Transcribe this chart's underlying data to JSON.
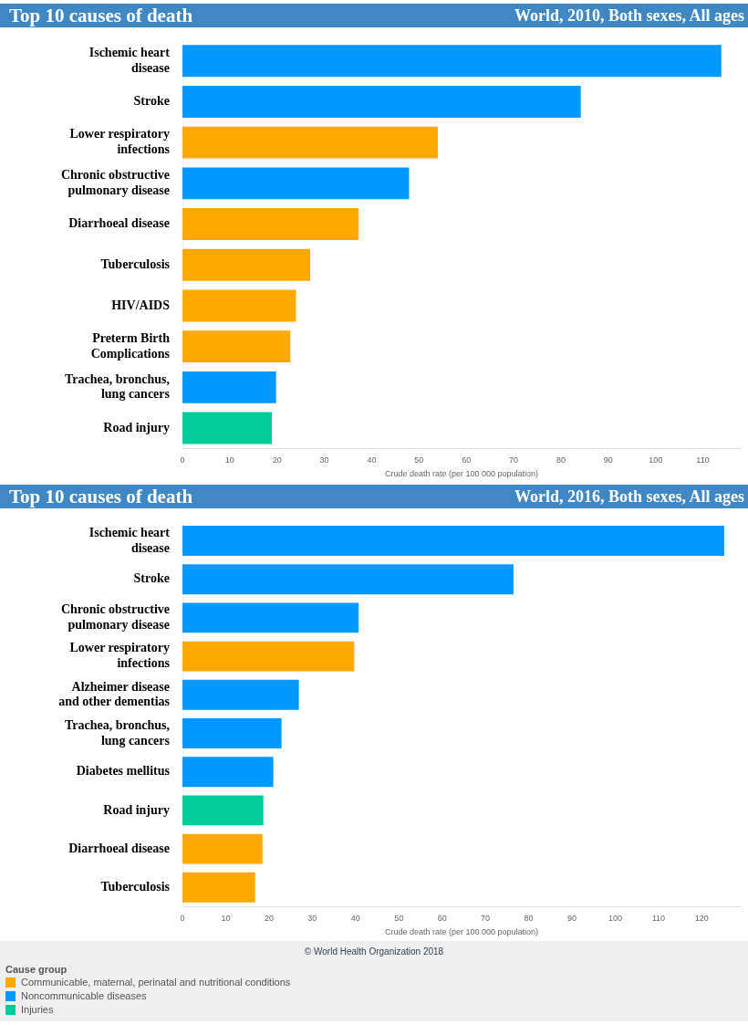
{
  "chart_data": [
    {
      "type": "bar",
      "orientation": "horizontal",
      "stacked": true,
      "title": "Top 10 causes of death",
      "subtitle": "World, 2010, Both sexes, All ages",
      "xlabel": "Crude death rate (per 100 000 population)",
      "categories": [
        "Ischemic heart disease",
        "Stroke",
        "Lower respiratory infections",
        "Chronic obstructive pulmonary disease",
        "Diarrhoeal disease",
        "Tuberculosis",
        "HIV/AIDS",
        "Preterm Birth Complications",
        "Trachea, bronchus, lung cancers",
        "Road injury"
      ],
      "series": [
        {
          "color": "#ffa800",
          "values": [
            null,
            null,
            54,
            null,
            37.2,
            27,
            24,
            22.8,
            null,
            null
          ]
        },
        {
          "color": "#0099ff",
          "values": [
            113.9,
            84.2,
            null,
            47.9,
            null,
            null,
            null,
            null,
            19.8,
            null
          ]
        },
        {
          "color": "#00cc99",
          "values": [
            null,
            null,
            null,
            null,
            null,
            null,
            null,
            null,
            null,
            18.9
          ]
        }
      ],
      "xlim": [
        0,
        118
      ],
      "xticks": [
        0,
        10,
        20,
        30,
        40,
        50,
        60,
        70,
        80,
        90,
        100,
        110
      ]
    },
    {
      "type": "bar",
      "orientation": "horizontal",
      "stacked": true,
      "title": "Top 10 causes of death",
      "subtitle": "World, 2016, Both sexes, All ages",
      "xlabel": "Crude death rate (per 100 000 population)",
      "legend": "bottom",
      "legend_title": "Cause group",
      "annotations": [
        "© World Health Organization 2018"
      ],
      "categories": [
        "Ischemic heart disease",
        "Stroke",
        "Chronic obstructive pulmonary disease",
        "Lower respiratory infections",
        "Alzheimer disease and other dementias",
        "Trachea, bronchus, lung cancers",
        "Diabetes mellitus",
        "Road injury",
        "Diarrhoeal disease",
        "Tuberculosis"
      ],
      "series": [
        {
          "name": "Communicable, maternal, perinatal and nutritional conditions",
          "color": "#ffa800",
          "values": [
            null,
            null,
            null,
            39.7,
            null,
            null,
            null,
            null,
            18.5,
            16.8
          ]
        },
        {
          "name": "Noncommunicable diseases",
          "color": "#0099ff",
          "values": [
            125.2,
            76.5,
            40.7,
            null,
            26.9,
            22.9,
            21,
            null,
            null,
            null
          ]
        },
        {
          "name": "Injuries",
          "color": "#00cc99",
          "values": [
            null,
            null,
            null,
            null,
            null,
            null,
            null,
            18.7,
            null,
            null
          ]
        }
      ],
      "xlim": [
        0,
        129
      ],
      "xticks": [
        0,
        10,
        20,
        30,
        40,
        50,
        60,
        70,
        80,
        90,
        100,
        110,
        120
      ]
    }
  ]
}
